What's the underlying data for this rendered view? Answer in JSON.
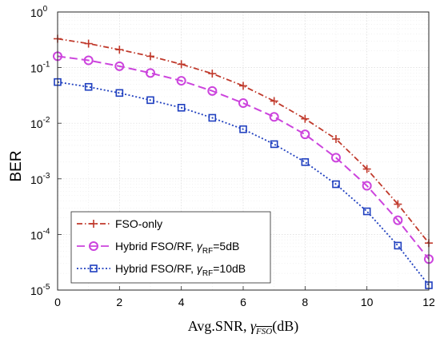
{
  "chart_data": {
    "type": "line",
    "title": "",
    "xlabel_prefix": "Avg.SNR, ",
    "xlabel_symbol": "γ",
    "xlabel_subscript": "FSO",
    "xlabel_unit": "(dB)",
    "ylabel": "BER",
    "xlim": [
      0,
      12
    ],
    "ylim": [
      1e-05,
      1
    ],
    "yscale": "log",
    "grid": true,
    "x": [
      0,
      1,
      2,
      3,
      4,
      5,
      6,
      7,
      8,
      9,
      10,
      11,
      12
    ],
    "x_ticks": [
      "0",
      "2",
      "4",
      "6",
      "8",
      "10",
      "12"
    ],
    "y_ticks": [
      {
        "base": "10",
        "exp": "0"
      },
      {
        "base": "10",
        "exp": "-1"
      },
      {
        "base": "10",
        "exp": "-2"
      },
      {
        "base": "10",
        "exp": "-3"
      },
      {
        "base": "10",
        "exp": "-4"
      },
      {
        "base": "10",
        "exp": "-5"
      }
    ],
    "legend_position": "bottom-left",
    "series": [
      {
        "name": "FSO-only",
        "color": "#c0392b",
        "marker": "plus",
        "dash": "dash-dot",
        "values": [
          0.33,
          0.27,
          0.21,
          0.16,
          0.115,
          0.078,
          0.047,
          0.025,
          0.012,
          0.0052,
          0.0015,
          0.00035,
          7e-05
        ]
      },
      {
        "name": "Hybrid FSO/RF, ",
        "name_symbol": "γ",
        "name_subscript": "RF",
        "name_suffix": "=5dB",
        "color": "#cc44dd",
        "marker": "circle",
        "dash": "dash",
        "values": [
          0.16,
          0.135,
          0.106,
          0.08,
          0.058,
          0.038,
          0.023,
          0.013,
          0.0063,
          0.0024,
          0.00075,
          0.00018,
          3.6e-05
        ]
      },
      {
        "name": "Hybrid FSO/RF, ",
        "name_symbol": "γ",
        "name_subscript": "RF",
        "name_suffix": "=10dB",
        "color": "#1f3fbf",
        "marker": "square",
        "dash": "dot",
        "values": [
          0.055,
          0.045,
          0.035,
          0.026,
          0.019,
          0.0125,
          0.0078,
          0.0042,
          0.002,
          0.0008,
          0.00026,
          6.3e-05,
          1.22e-05
        ]
      }
    ]
  }
}
